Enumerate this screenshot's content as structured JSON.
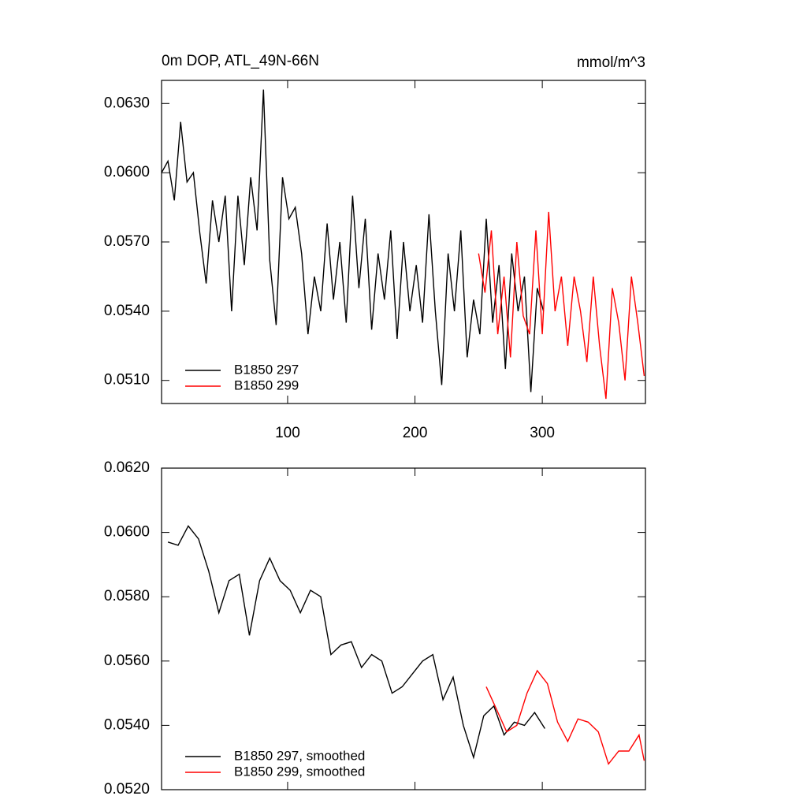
{
  "chart_data": [
    {
      "type": "line",
      "title": "0m DOP, ATL_49N-66N",
      "subtitle": "mmol/m^3",
      "xlim": [
        1,
        381
      ],
      "xticks": [
        100,
        200,
        300
      ],
      "ylim": [
        0.05,
        0.064
      ],
      "yticks": [
        {
          "value": 0.051,
          "label": "0.0510"
        },
        {
          "value": 0.054,
          "label": "0.0540"
        },
        {
          "value": 0.057,
          "label": "0.0570"
        },
        {
          "value": 0.06,
          "label": "0.0600"
        },
        {
          "value": 0.063,
          "label": "0.0630"
        }
      ],
      "legend": "lower left",
      "series": [
        {
          "name": "B1850 297",
          "color": "#000000",
          "x": [
            1,
            6,
            11,
            16,
            21,
            26,
            31,
            36,
            41,
            46,
            51,
            56,
            61,
            66,
            71,
            76,
            81,
            86,
            91,
            96,
            101,
            106,
            111,
            116,
            121,
            126,
            131,
            136,
            141,
            146,
            151,
            156,
            161,
            166,
            171,
            176,
            181,
            186,
            191,
            196,
            201,
            206,
            211,
            216,
            221,
            226,
            231,
            236,
            241,
            246,
            251,
            256,
            261,
            266,
            271,
            276,
            281,
            286,
            291,
            296,
            301
          ],
          "values": [
            0.06,
            0.0605,
            0.0588,
            0.0622,
            0.0596,
            0.06,
            0.0574,
            0.0552,
            0.0588,
            0.057,
            0.059,
            0.054,
            0.059,
            0.056,
            0.0598,
            0.0575,
            0.0636,
            0.0562,
            0.0534,
            0.0598,
            0.058,
            0.0585,
            0.0565,
            0.053,
            0.0555,
            0.054,
            0.0578,
            0.0545,
            0.057,
            0.0535,
            0.059,
            0.055,
            0.058,
            0.0532,
            0.0565,
            0.0545,
            0.0575,
            0.0528,
            0.057,
            0.054,
            0.056,
            0.0535,
            0.0582,
            0.054,
            0.0508,
            0.0565,
            0.054,
            0.0575,
            0.052,
            0.0545,
            0.053,
            0.058,
            0.0535,
            0.056,
            0.0515,
            0.0565,
            0.054,
            0.0555,
            0.0505,
            0.055,
            0.054
          ]
        },
        {
          "name": "B1850 299",
          "color": "#ff0000",
          "x": [
            250,
            255,
            260,
            265,
            270,
            275,
            280,
            285,
            290,
            295,
            300,
            305,
            310,
            315,
            320,
            325,
            330,
            335,
            340,
            345,
            350,
            355,
            360,
            365,
            370,
            375,
            380
          ],
          "values": [
            0.0565,
            0.0548,
            0.0575,
            0.053,
            0.0555,
            0.052,
            0.057,
            0.0538,
            0.053,
            0.0575,
            0.053,
            0.0583,
            0.054,
            0.0555,
            0.0525,
            0.0555,
            0.054,
            0.0518,
            0.0555,
            0.0525,
            0.0502,
            0.055,
            0.0535,
            0.051,
            0.0555,
            0.0535,
            0.0512
          ]
        }
      ]
    },
    {
      "type": "line",
      "xlim": [
        1,
        381
      ],
      "xticks": [
        100,
        200,
        300
      ],
      "ylim": [
        0.052,
        0.062
      ],
      "yticks": [
        {
          "value": 0.052,
          "label": "0.0520"
        },
        {
          "value": 0.054,
          "label": "0.0540"
        },
        {
          "value": 0.056,
          "label": "0.0560"
        },
        {
          "value": 0.058,
          "label": "0.0580"
        },
        {
          "value": 0.06,
          "label": "0.0600"
        },
        {
          "value": 0.062,
          "label": "0.0620"
        }
      ],
      "legend": "lower left",
      "series": [
        {
          "name": "B1850 297, smoothed",
          "color": "#000000",
          "x": [
            6,
            14,
            22,
            30,
            38,
            46,
            54,
            62,
            70,
            78,
            86,
            94,
            102,
            110,
            118,
            126,
            134,
            142,
            150,
            158,
            166,
            174,
            182,
            190,
            198,
            206,
            214,
            222,
            230,
            238,
            246,
            254,
            262,
            270,
            278,
            286,
            294,
            302
          ],
          "values": [
            0.0597,
            0.0596,
            0.0602,
            0.0598,
            0.0588,
            0.0575,
            0.0585,
            0.0587,
            0.0568,
            0.0585,
            0.0592,
            0.0585,
            0.0582,
            0.0575,
            0.0582,
            0.058,
            0.0562,
            0.0565,
            0.0566,
            0.0558,
            0.0562,
            0.056,
            0.055,
            0.0552,
            0.0556,
            0.056,
            0.0562,
            0.0548,
            0.0555,
            0.054,
            0.053,
            0.0543,
            0.0546,
            0.0537,
            0.0541,
            0.054,
            0.0544,
            0.0539
          ]
        },
        {
          "name": "B1850 299, smoothed",
          "color": "#ff0000",
          "x": [
            256,
            264,
            272,
            280,
            288,
            296,
            304,
            312,
            320,
            328,
            336,
            344,
            352,
            360,
            368,
            376,
            380
          ],
          "values": [
            0.0552,
            0.0545,
            0.0538,
            0.054,
            0.055,
            0.0557,
            0.0553,
            0.0541,
            0.0535,
            0.0542,
            0.0541,
            0.0538,
            0.0528,
            0.0532,
            0.0532,
            0.0537,
            0.0529
          ]
        }
      ]
    }
  ]
}
